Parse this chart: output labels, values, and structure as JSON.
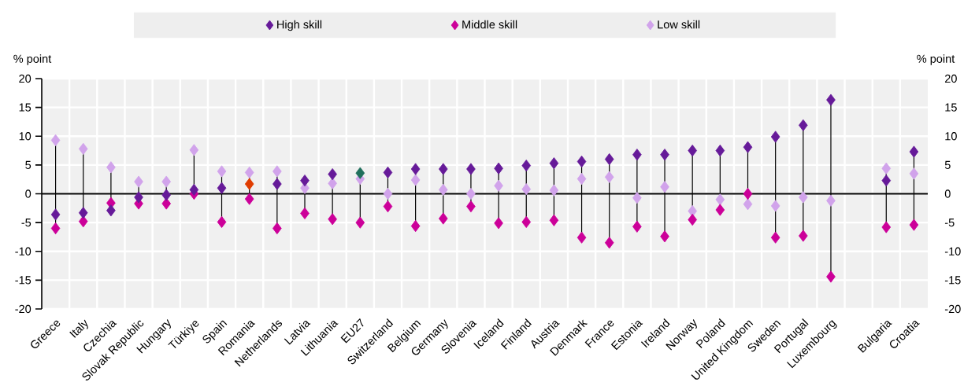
{
  "chart_data": {
    "type": "scatter",
    "categories": [
      "Greece",
      "Italy",
      "Czechia",
      "Slovak Republic",
      "Hungary",
      "Türkiye",
      "Spain",
      "Romania",
      "Netherlands",
      "Latvia",
      "Lithuania",
      "EU27",
      "Switzerland",
      "Belgium",
      "Germany",
      "Slovenia",
      "Iceland",
      "Finland",
      "Austria",
      "Denmark",
      "France",
      "Estonia",
      "Ireland",
      "Norway",
      "Poland",
      "United Kingdom",
      "Sweden",
      "Portugal",
      "Luxembourg",
      null,
      "Bulgaria",
      "Croatia"
    ],
    "series": [
      {
        "name": "High skill",
        "color": "#661a99",
        "colors": [
          "#661a99",
          "#661a99",
          "#661a99",
          "#661a99",
          "#661a99",
          "#661a99",
          "#661a99",
          "#e03c00",
          "#661a99",
          "#661a99",
          "#661a99",
          "#1f6f5c",
          "#661a99",
          "#661a99",
          "#661a99",
          "#661a99",
          "#661a99",
          "#661a99",
          "#661a99",
          "#661a99",
          "#661a99",
          "#661a99",
          "#661a99",
          "#661a99",
          "#661a99",
          "#661a99",
          "#661a99",
          "#661a99",
          "#661a99",
          "#661a99",
          "#661a99",
          "#661a99"
        ],
        "values": [
          -3.6,
          -3.3,
          -2.9,
          -0.6,
          -0.2,
          0.7,
          1.0,
          1.7,
          1.7,
          2.3,
          3.4,
          3.6,
          3.7,
          4.3,
          4.3,
          4.3,
          4.4,
          4.9,
          5.3,
          5.6,
          6.0,
          6.8,
          6.8,
          7.5,
          7.5,
          8.1,
          9.9,
          11.9,
          16.3,
          null,
          2.3,
          7.3
        ]
      },
      {
        "name": "Middle skill",
        "color": "#cc0099",
        "values": [
          -6.0,
          -4.8,
          -1.6,
          -1.7,
          -1.7,
          0.0,
          -4.9,
          -0.9,
          -6.0,
          -3.4,
          -4.4,
          -5.0,
          -2.2,
          -5.6,
          -4.3,
          -2.2,
          -5.1,
          -4.9,
          -4.6,
          -7.6,
          -8.5,
          -5.7,
          -7.4,
          -4.5,
          -2.8,
          0.0,
          -7.6,
          -7.3,
          -14.4,
          null,
          -5.8,
          -5.4
        ]
      },
      {
        "name": "Low skill",
        "color": "#d1a3eb",
        "values": [
          9.3,
          7.8,
          4.6,
          2.1,
          2.1,
          7.6,
          3.9,
          3.7,
          3.9,
          1.0,
          1.8,
          2.6,
          0.0,
          2.4,
          0.7,
          0.0,
          1.4,
          0.8,
          0.6,
          2.6,
          2.9,
          -0.7,
          1.2,
          -3.0,
          -1.0,
          -1.8,
          -2.1,
          -0.6,
          -1.2,
          null,
          4.4,
          3.5
        ]
      }
    ],
    "ylabel": "% point",
    "y2label": "% point",
    "ylim": [
      -20,
      20
    ],
    "yticks": [
      -20,
      -15,
      -10,
      -5,
      0,
      5,
      10,
      15,
      20
    ],
    "y2lim": [
      -20,
      20
    ],
    "y2ticks": [
      -20,
      -15,
      -10,
      -5,
      0,
      5,
      10,
      15,
      20
    ],
    "ref_lines": [
      {
        "axis": "y",
        "value": 0,
        "color": "#000000"
      }
    ],
    "grid": true,
    "legend": "top",
    "marker": "diamond"
  }
}
